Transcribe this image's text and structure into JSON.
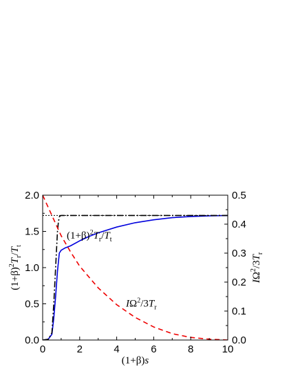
{
  "chart_data": {
    "type": "line",
    "xlabel": {
      "prefix": "(1+β)",
      "var": "s"
    },
    "ylabel_left": {
      "prefix": "(1+β)",
      "sup": "2",
      "T": "T",
      "sub_r": "r",
      "slash": "/",
      "T2": "T",
      "sub_t": "t"
    },
    "ylabel_right": {
      "I": "I",
      "Omega": "Ω",
      "sup": "2",
      "rest": "/3",
      "T": "T",
      "sub_r": "r"
    },
    "xlim": [
      0,
      10
    ],
    "ylim_left": [
      0,
      2.0
    ],
    "ylim_right": [
      0,
      0.5
    ],
    "x_ticks": [
      0,
      2,
      4,
      6,
      8,
      10
    ],
    "x_tick_labels": [
      "0",
      "2",
      "4",
      "6",
      "8",
      "10"
    ],
    "y_ticks_left": [
      0,
      0.5,
      1.0,
      1.5,
      2.0
    ],
    "y_tick_labels_left": [
      "0.0",
      "0.5",
      "1.0",
      "1.5",
      "2.0"
    ],
    "y_ticks_right": [
      0,
      0.1,
      0.2,
      0.3,
      0.4,
      0.5
    ],
    "y_tick_labels_right": [
      "0.0",
      "0.1",
      "0.2",
      "0.3",
      "0.4",
      "0.5"
    ],
    "grid": false,
    "series": [
      {
        "axis": "left",
        "color": "#0000dd",
        "style": "solid",
        "x": [
          0,
          0.3,
          0.5,
          0.6,
          0.7,
          0.8,
          0.9,
          1.0,
          1.2,
          1.5,
          2,
          2.5,
          3,
          4,
          5,
          6,
          7,
          8,
          9,
          10
        ],
        "y": [
          0,
          0.01,
          0.08,
          0.3,
          0.6,
          0.95,
          1.2,
          1.24,
          1.27,
          1.3,
          1.37,
          1.43,
          1.48,
          1.56,
          1.62,
          1.66,
          1.69,
          1.705,
          1.715,
          1.72
        ]
      },
      {
        "axis": "left",
        "color": "#000000",
        "style": "dashdot",
        "x": [
          0,
          0.3,
          0.5,
          0.6,
          0.7,
          0.8,
          0.85,
          0.9,
          0.95,
          1.0,
          1.2,
          1.5,
          2,
          4,
          6,
          8,
          10
        ],
        "y": [
          0,
          0.01,
          0.1,
          0.5,
          1.0,
          1.5,
          1.63,
          1.7,
          1.715,
          1.72,
          1.72,
          1.72,
          1.72,
          1.72,
          1.72,
          1.72,
          1.72
        ]
      },
      {
        "axis": "left",
        "color": "#000000",
        "style": "dotted-thin",
        "x": [
          0,
          10
        ],
        "y": [
          1.72,
          1.72
        ]
      },
      {
        "axis": "right",
        "color": "#ee0000",
        "style": "dashed",
        "x": [
          0,
          0.5,
          1,
          1.5,
          2,
          3,
          4,
          5,
          6,
          7,
          8,
          9,
          10
        ],
        "y": [
          0.5,
          0.43,
          0.36,
          0.305,
          0.255,
          0.18,
          0.122,
          0.078,
          0.045,
          0.022,
          0.009,
          0.003,
          0.0
        ]
      }
    ],
    "annotations": [
      {
        "id": "blue",
        "x": 1.3,
        "y": 1.4,
        "prefix": "(1+β)",
        "sup": "2",
        "T": "T",
        "sub_r": "r",
        "slash": "/",
        "T2": "T",
        "sub_t": "t"
      },
      {
        "id": "red",
        "x": 4.5,
        "y": 0.46,
        "I": "I",
        "Omega": "Ω",
        "sup": "2",
        "rest": "/3",
        "T": "T",
        "sub_r": "r"
      }
    ]
  }
}
